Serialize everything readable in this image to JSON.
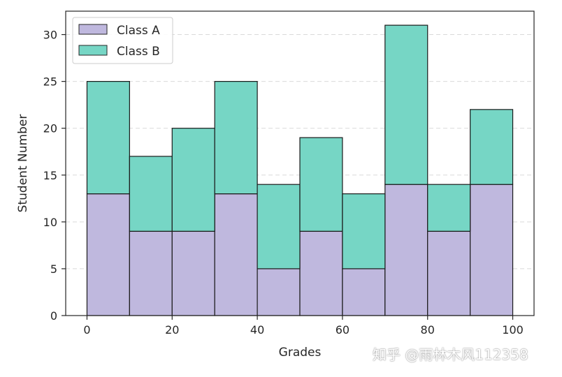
{
  "chart_data": {
    "type": "bar",
    "stacked": true,
    "bin_edges": [
      0,
      10,
      20,
      30,
      40,
      50,
      60,
      70,
      80,
      90,
      100
    ],
    "series": [
      {
        "name": "Class A",
        "values": [
          13,
          9,
          9,
          13,
          5,
          9,
          5,
          14,
          9,
          14
        ],
        "color": "#bfb8de"
      },
      {
        "name": "Class B",
        "values": [
          12,
          8,
          11,
          12,
          9,
          10,
          8,
          17,
          5,
          8
        ],
        "color": "#76d6c5"
      }
    ],
    "xlabel": "Grades",
    "ylabel": "Student Number",
    "xlim": [
      -5,
      105
    ],
    "ylim": [
      0,
      32.5
    ],
    "xticks": [
      0,
      20,
      40,
      60,
      80,
      100
    ],
    "yticks": [
      0,
      5,
      10,
      15,
      20,
      25,
      30
    ],
    "grid": "horizontal dashed",
    "legend": "top-left"
  },
  "watermark": "知乎 @雨林木风112358"
}
